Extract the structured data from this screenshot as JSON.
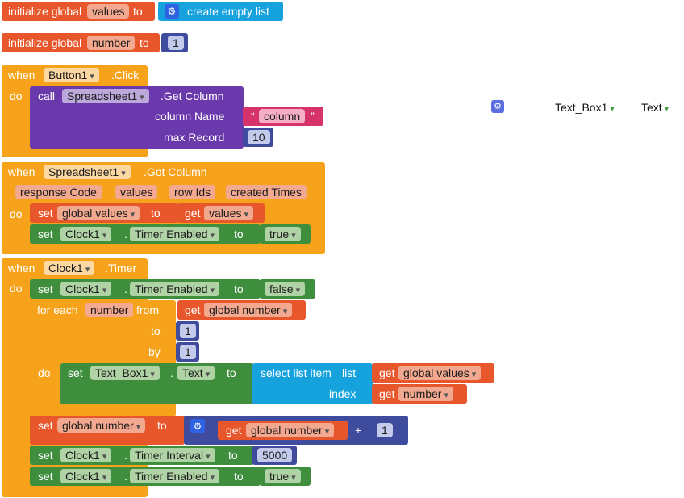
{
  "blocks": {
    "init_values": {
      "prefix": "initialize global",
      "var": "values",
      "to": "to",
      "call": "create empty list"
    },
    "init_number": {
      "prefix": "initialize global",
      "var": "number",
      "to": "to",
      "value": "1"
    },
    "button_click": {
      "when": "when",
      "component": "Button1",
      "event": ".Click",
      "do": "do",
      "call": "call",
      "call_component": "Spreadsheet1",
      "method": ".Get Column",
      "arg1_label": "column Name",
      "arg1_open": "“",
      "arg1_value": "column",
      "arg1_close": "”",
      "arg2_label": "max Record",
      "arg2_value": "10"
    },
    "got_column": {
      "when": "when",
      "component": "Spreadsheet1",
      "event": ".Got Column",
      "params": [
        "response Code",
        "values",
        "row Ids",
        "created Times"
      ],
      "do": "do",
      "set1": {
        "set": "set",
        "var": "global values",
        "to": "to",
        "get": "get",
        "get_var": "values"
      },
      "set2": {
        "set": "set",
        "component": "Clock1",
        "dot": ".",
        "prop": "Timer Enabled",
        "to": "to",
        "value": "true"
      }
    },
    "timer": {
      "when": "when",
      "component": "Clock1",
      "event": ".Timer",
      "do": "do",
      "set1": {
        "set": "set",
        "component": "Clock1",
        "dot": ".",
        "prop": "Timer Enabled",
        "to": "to",
        "value": "false"
      },
      "for_each": {
        "label": "for each",
        "var": "number",
        "from": "from",
        "from_get": "get",
        "from_var": "global number",
        "to": "to",
        "to_value": "1",
        "by": "by",
        "by_value": "1",
        "do": "do"
      },
      "inner_set": {
        "set": "set",
        "component": "Text_Box1",
        "dot": ".",
        "prop": "Text",
        "to": "to",
        "select": "select list item",
        "list": "list",
        "list_get": "get",
        "list_var": "global values",
        "index": "index",
        "index_get": "get",
        "index_var": "number"
      },
      "set_number": {
        "set": "set",
        "var": "global number",
        "to": "to",
        "get": "get",
        "get_var": "global number",
        "plus": "+",
        "value": "1"
      },
      "set_interval": {
        "set": "set",
        "component": "Clock1",
        "dot": ".",
        "prop": "Timer Interval",
        "to": "to",
        "value": "5000"
      },
      "set_enabled": {
        "set": "set",
        "component": "Clock1",
        "dot": ".",
        "prop": "Timer Enabled",
        "to": "to",
        "value": "true"
      }
    }
  },
  "workspace_item": {
    "component": "Text_Box1",
    "prop": "Text"
  },
  "icons": {
    "mutator": "gear-icon"
  },
  "colors": {
    "variables": "#e8562b",
    "control": "#f6a31b",
    "component_call": "#6a3aad",
    "text": "#d6336c",
    "math": "#3f4b9c",
    "component_set": "#3e8e3e",
    "lists": "#16a2dd"
  }
}
